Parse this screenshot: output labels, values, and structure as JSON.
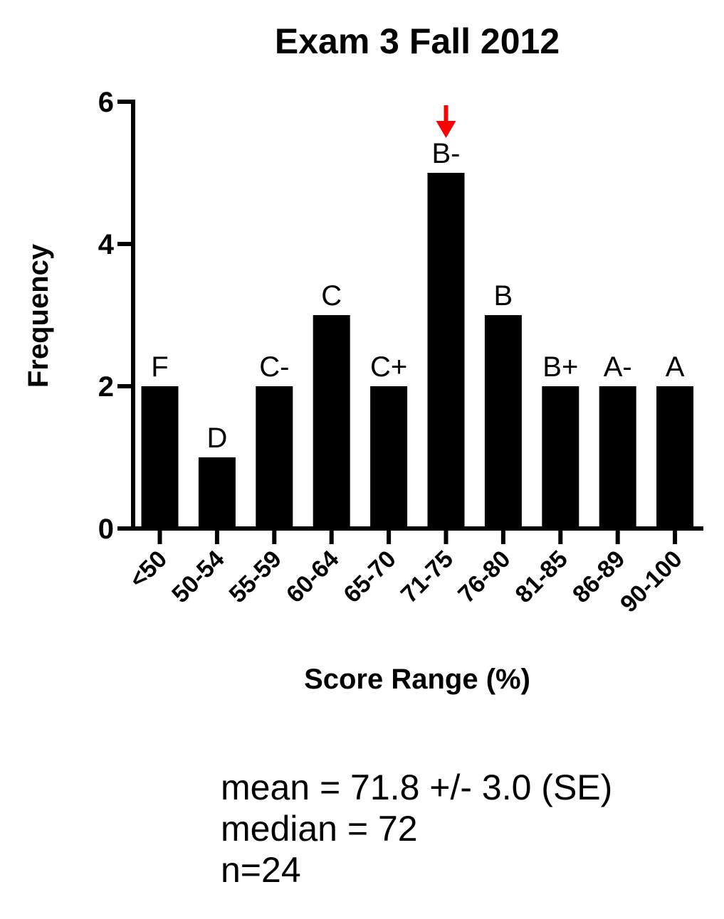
{
  "chart_data": {
    "type": "bar",
    "title": "Exam 3 Fall 2012",
    "xlabel": "Score Range (%)",
    "ylabel": "Frequency",
    "ylim": [
      0,
      6
    ],
    "yticks": [
      0,
      2,
      4,
      6
    ],
    "grid": false,
    "categories": [
      "<50",
      "50-54",
      "55-59",
      "60-64",
      "65-70",
      "71-75",
      "76-80",
      "81-85",
      "86-89",
      "90-100"
    ],
    "values": [
      2,
      1,
      2,
      3,
      2,
      5,
      3,
      2,
      2,
      2
    ],
    "bar_labels": [
      "F",
      "D",
      "C-",
      "C",
      "C+",
      "B-",
      "B",
      "B+",
      "A-",
      "A"
    ],
    "bar_color": "#000000",
    "marker": {
      "category": "71-75",
      "shape": "down-arrow",
      "color": "#ff0000"
    }
  },
  "stats": {
    "mean": "mean = 71.8 +/- 3.0 (SE)",
    "median": "median = 72",
    "n": "n=24"
  }
}
